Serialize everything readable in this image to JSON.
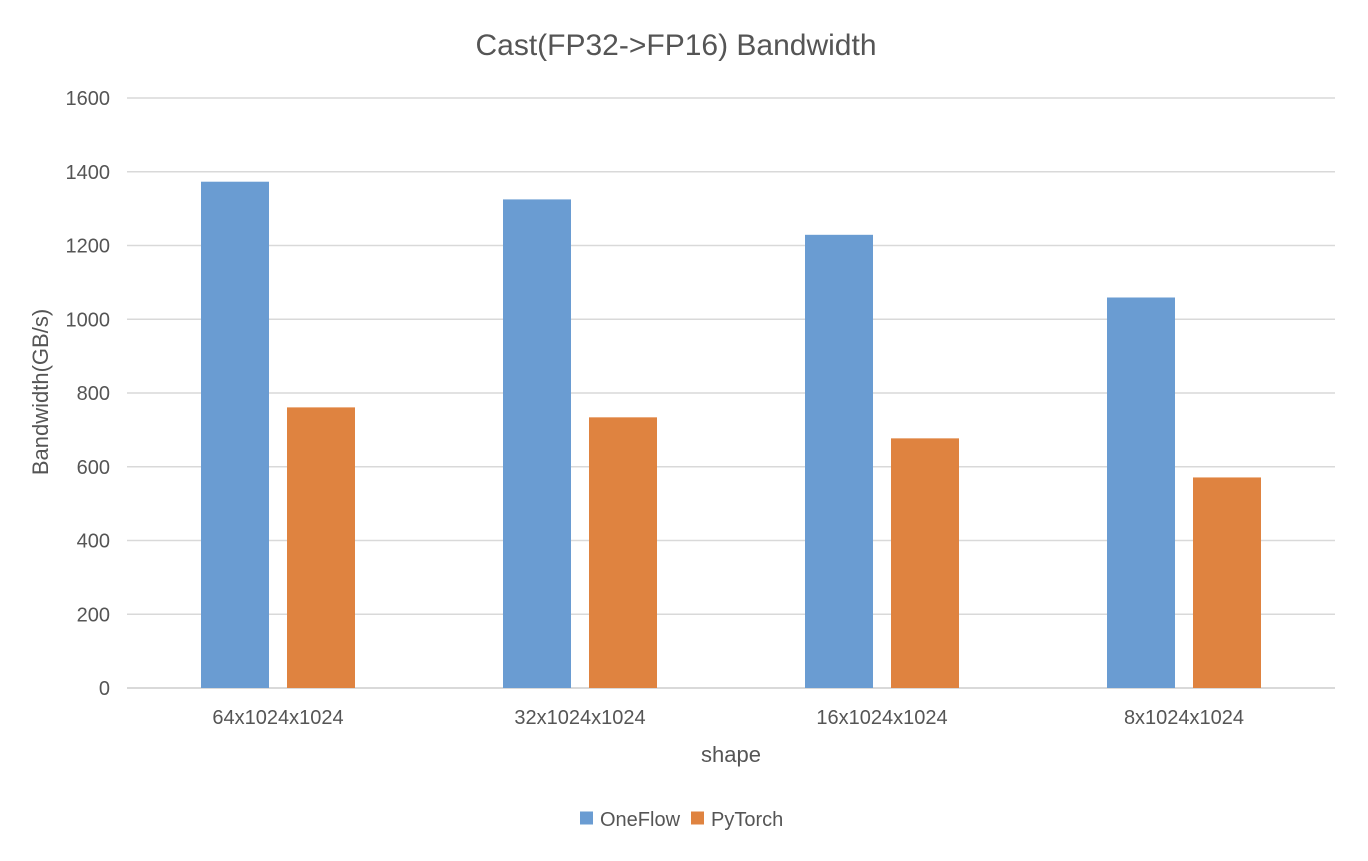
{
  "chart_data": {
    "type": "bar",
    "title": "Cast(FP32->FP16) Bandwidth",
    "xlabel": "shape",
    "ylabel": "Bandwidth(GB/s)",
    "categories": [
      "64x1024x1024",
      "32x1024x1024",
      "16x1024x1024",
      "8x1024x1024"
    ],
    "series": [
      {
        "name": "OneFlow",
        "color": "#6a9cd2",
        "values": [
          1373,
          1325,
          1229,
          1059
        ]
      },
      {
        "name": "PyTorch",
        "color": "#df8340",
        "values": [
          761,
          734,
          677,
          571
        ]
      }
    ],
    "ylim": [
      0,
      1600
    ],
    "yticks": [
      0,
      200,
      400,
      600,
      800,
      1000,
      1200,
      1400,
      1600
    ],
    "grid": true,
    "legend_position": "bottom-center",
    "colors": {
      "grid": "#d9d9d9",
      "text": "#555555",
      "title": "#555555"
    }
  }
}
